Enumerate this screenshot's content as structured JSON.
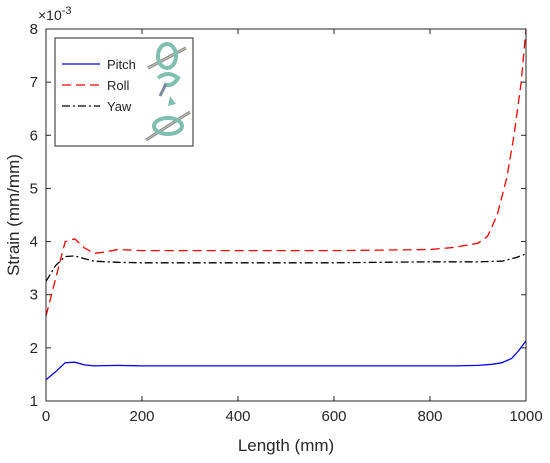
{
  "chart_data": {
    "type": "line",
    "title": "",
    "xlabel": "Length (mm)",
    "ylabel": "Strain (mm/mm)",
    "y_exponent_label": "×10",
    "y_exponent_power": "-3",
    "xlim": [
      0,
      1000
    ],
    "ylim": [
      1,
      8
    ],
    "xticks": [
      0,
      200,
      400,
      600,
      800,
      1000
    ],
    "yticks": [
      1,
      2,
      3,
      4,
      5,
      6,
      7,
      8
    ],
    "grid": false,
    "legend_position": "top-left",
    "series": [
      {
        "name": "Pitch",
        "color": "#0000ff",
        "style": "solid",
        "x": [
          0,
          20,
          40,
          60,
          80,
          100,
          150,
          200,
          300,
          400,
          500,
          600,
          700,
          800,
          850,
          900,
          930,
          950,
          970,
          985,
          1000
        ],
        "y": [
          1.4,
          1.55,
          1.72,
          1.73,
          1.68,
          1.66,
          1.67,
          1.66,
          1.66,
          1.66,
          1.66,
          1.66,
          1.66,
          1.66,
          1.66,
          1.67,
          1.69,
          1.72,
          1.8,
          1.95,
          2.13
        ]
      },
      {
        "name": "Roll",
        "color": "#ff0000",
        "style": "dashed",
        "x": [
          0,
          20,
          40,
          60,
          80,
          100,
          120,
          150,
          200,
          300,
          400,
          500,
          600,
          700,
          800,
          850,
          900,
          920,
          940,
          960,
          975,
          990,
          1000
        ],
        "y": [
          2.6,
          3.3,
          4.0,
          4.05,
          3.88,
          3.78,
          3.8,
          3.85,
          3.83,
          3.83,
          3.83,
          3.83,
          3.83,
          3.84,
          3.85,
          3.89,
          3.97,
          4.1,
          4.5,
          5.2,
          6.0,
          7.0,
          8.0
        ]
      },
      {
        "name": "Yaw",
        "color": "#000000",
        "style": "dashdot",
        "x": [
          0,
          20,
          40,
          60,
          80,
          100,
          150,
          200,
          300,
          400,
          500,
          600,
          700,
          800,
          900,
          950,
          980,
          1000
        ],
        "y": [
          3.25,
          3.55,
          3.72,
          3.73,
          3.68,
          3.63,
          3.61,
          3.6,
          3.6,
          3.6,
          3.6,
          3.6,
          3.61,
          3.62,
          3.62,
          3.63,
          3.7,
          3.77
        ]
      }
    ]
  }
}
